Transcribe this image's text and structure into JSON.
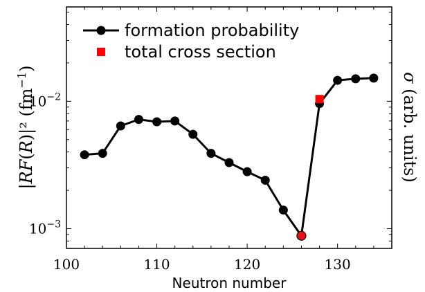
{
  "chart_data": {
    "type": "line",
    "xlabel": "Neutron number",
    "ylabel_left_parts": [
      "|",
      "RF",
      "(",
      "R",
      ")|² (fm",
      "−1",
      ")"
    ],
    "ylabel_right_parts": [
      "σ",
      " (arb. units)"
    ],
    "xlim": [
      100,
      136
    ],
    "ylim": [
      0.0007,
      0.055
    ],
    "yscale": "log",
    "x_ticks": [
      100,
      110,
      120,
      130
    ],
    "y_ticks": [
      {
        "value": 0.01,
        "base": "10",
        "exp": "−2"
      },
      {
        "value": 0.001,
        "base": "10",
        "exp": "−3"
      }
    ],
    "legend_position": "upper-left",
    "series": [
      {
        "name": "formation probability",
        "color": "#000000",
        "marker": "circle",
        "x": [
          102,
          104,
          106,
          108,
          110,
          112,
          114,
          116,
          118,
          120,
          122,
          124,
          126,
          128,
          130,
          132,
          134
        ],
        "y": [
          0.0038,
          0.0039,
          0.0064,
          0.0072,
          0.0069,
          0.007,
          0.0055,
          0.0039,
          0.0033,
          0.0028,
          0.0024,
          0.0014,
          0.00088,
          0.0096,
          0.0146,
          0.015,
          0.0152
        ],
        "highlight": [
          {
            "x": 126,
            "y": 0.00088,
            "color": "#e8101a"
          }
        ]
      },
      {
        "name": "total cross section",
        "color": "#ff0000",
        "marker": "square",
        "x": [
          128
        ],
        "y": [
          0.0104
        ]
      }
    ]
  }
}
